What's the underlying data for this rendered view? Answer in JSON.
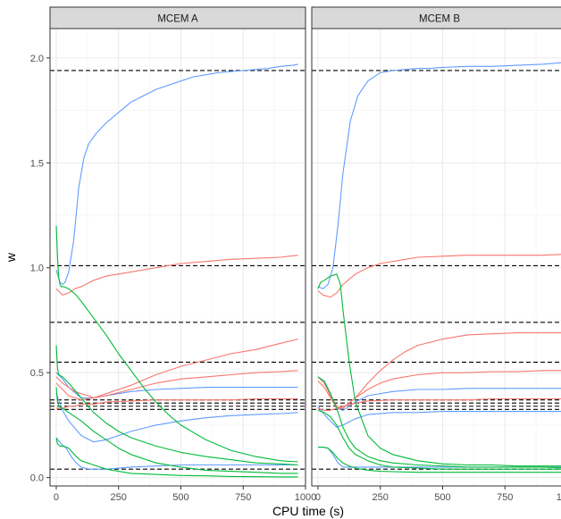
{
  "chart_data": {
    "type": "line",
    "xlabel": "CPU time (s)",
    "ylabel": "w",
    "xlim": [
      -25,
      1000
    ],
    "ylim": [
      -0.04,
      2.14
    ],
    "x_ticks": [
      0,
      250,
      500,
      750,
      1000
    ],
    "x_tick_labels": [
      "0",
      "250",
      "500",
      "750",
      "1000"
    ],
    "y_ticks": [
      0.0,
      0.5,
      1.0,
      1.5,
      2.0
    ],
    "y_tick_labels": [
      "0.0",
      "0.5",
      "1.0",
      "1.5",
      "2.0"
    ],
    "grid": true,
    "colors": {
      "blue": "#619CFF",
      "red": "#F8766D",
      "green": "#00BA38",
      "reference": "#000000"
    },
    "reference_lines": [
      1.94,
      1.01,
      0.74,
      0.55,
      0.37,
      0.355,
      0.34,
      0.325,
      0.04
    ],
    "panels": [
      {
        "strip": "MCEM A",
        "series": [
          {
            "color": "blue",
            "x": [
              0,
              15,
              25,
              35,
              50,
              70,
              90,
              110,
              130,
              160,
              200,
              250,
              300,
              350,
              400,
              450,
              500,
              550,
              600,
              650,
              700,
              750,
              800,
              850,
              900,
              950,
              970
            ],
            "y": [
              0.99,
              0.93,
              0.92,
              0.93,
              0.98,
              1.13,
              1.38,
              1.52,
              1.59,
              1.64,
              1.69,
              1.74,
              1.79,
              1.82,
              1.85,
              1.87,
              1.89,
              1.91,
              1.92,
              1.93,
              1.935,
              1.94,
              1.945,
              1.95,
              1.96,
              1.965,
              1.97
            ]
          },
          {
            "color": "blue",
            "x": [
              0,
              25,
              50,
              100,
              150,
              200,
              300,
              400,
              500,
              600,
              700,
              800,
              900,
              970
            ],
            "y": [
              0.5,
              0.47,
              0.43,
              0.38,
              0.38,
              0.39,
              0.41,
              0.42,
              0.425,
              0.43,
              0.43,
              0.43,
              0.43,
              0.43
            ]
          },
          {
            "color": "blue",
            "x": [
              0,
              25,
              50,
              100,
              150,
              200,
              250,
              300,
              400,
              500,
              600,
              700,
              800,
              900,
              970
            ],
            "y": [
              0.4,
              0.32,
              0.27,
              0.2,
              0.17,
              0.18,
              0.2,
              0.22,
              0.25,
              0.27,
              0.285,
              0.295,
              0.3,
              0.305,
              0.31
            ]
          },
          {
            "color": "blue",
            "x": [
              0,
              20,
              40,
              60,
              80,
              100,
              130,
              200,
              300,
              400,
              500,
              600,
              700,
              800,
              970
            ],
            "y": [
              0.19,
              0.16,
              0.14,
              0.1,
              0.07,
              0.05,
              0.04,
              0.04,
              0.05,
              0.055,
              0.06,
              0.06,
              0.06,
              0.06,
              0.06
            ]
          },
          {
            "color": "red",
            "x": [
              0,
              25,
              50,
              75,
              100,
              150,
              200,
              250,
              300,
              400,
              500,
              600,
              700,
              800,
              900,
              970
            ],
            "y": [
              0.9,
              0.87,
              0.88,
              0.9,
              0.91,
              0.94,
              0.96,
              0.97,
              0.98,
              1.0,
              1.02,
              1.03,
              1.04,
              1.045,
              1.05,
              1.06
            ]
          },
          {
            "color": "red",
            "x": [
              0,
              25,
              50,
              75,
              100,
              130,
              150,
              200,
              300,
              400,
              500,
              600,
              700,
              800,
              900,
              970
            ],
            "y": [
              0.48,
              0.45,
              0.43,
              0.41,
              0.4,
              0.39,
              0.38,
              0.4,
              0.44,
              0.49,
              0.53,
              0.56,
              0.59,
              0.61,
              0.64,
              0.66
            ]
          },
          {
            "color": "red",
            "x": [
              0,
              25,
              50,
              100,
              150,
              200,
              300,
              400,
              500,
              600,
              700,
              800,
              900,
              970
            ],
            "y": [
              0.45,
              0.42,
              0.39,
              0.37,
              0.38,
              0.39,
              0.42,
              0.45,
              0.47,
              0.48,
              0.49,
              0.5,
              0.505,
              0.51
            ]
          },
          {
            "color": "red",
            "x": [
              0,
              25,
              50,
              75,
              100,
              150,
              200,
              300,
              400,
              500,
              600,
              700,
              800,
              900,
              970
            ],
            "y": [
              0.33,
              0.33,
              0.34,
              0.34,
              0.35,
              0.35,
              0.36,
              0.365,
              0.37,
              0.37,
              0.37,
              0.37,
              0.375,
              0.375,
              0.375
            ]
          },
          {
            "color": "green",
            "x": [
              0,
              5,
              10,
              15,
              20,
              30,
              50,
              80,
              100,
              150,
              200,
              250,
              300,
              350,
              400,
              450,
              500,
              600,
              700,
              800,
              900,
              970
            ],
            "y": [
              1.2,
              1.05,
              0.95,
              0.92,
              0.91,
              0.91,
              0.9,
              0.87,
              0.84,
              0.76,
              0.68,
              0.59,
              0.51,
              0.43,
              0.36,
              0.3,
              0.25,
              0.18,
              0.13,
              0.1,
              0.08,
              0.075
            ]
          },
          {
            "color": "green",
            "x": [
              0,
              5,
              10,
              25,
              50,
              100,
              150,
              200,
              250,
              300,
              400,
              500,
              600,
              700,
              800,
              900,
              970
            ],
            "y": [
              0.63,
              0.52,
              0.49,
              0.48,
              0.45,
              0.38,
              0.31,
              0.26,
              0.22,
              0.19,
              0.15,
              0.12,
              0.1,
              0.085,
              0.07,
              0.065,
              0.06
            ]
          },
          {
            "color": "green",
            "x": [
              0,
              5,
              10,
              25,
              50,
              100,
              150,
              200,
              250,
              300,
              400,
              500,
              600,
              700,
              800,
              900,
              970
            ],
            "y": [
              0.43,
              0.36,
              0.34,
              0.33,
              0.31,
              0.27,
              0.22,
              0.18,
              0.14,
              0.11,
              0.07,
              0.05,
              0.035,
              0.03,
              0.025,
              0.02,
              0.02
            ]
          },
          {
            "color": "green",
            "x": [
              0,
              5,
              15,
              30,
              50,
              80,
              100,
              150,
              200,
              250,
              300,
              400,
              500,
              600,
              700,
              800,
              900,
              970
            ],
            "y": [
              0.19,
              0.16,
              0.15,
              0.15,
              0.14,
              0.1,
              0.08,
              0.06,
              0.04,
              0.03,
              0.02,
              0.015,
              0.01,
              0.008,
              0.005,
              0.004,
              0.003,
              0.003
            ]
          }
        ]
      },
      {
        "strip": "MCEM B",
        "series": [
          {
            "color": "blue",
            "x": [
              0,
              20,
              40,
              60,
              80,
              100,
              130,
              160,
              200,
              250,
              300,
              350,
              400,
              450,
              500,
              600,
              700,
              800,
              900,
              1000
            ],
            "y": [
              0.91,
              0.9,
              0.92,
              1.0,
              1.2,
              1.45,
              1.7,
              1.82,
              1.89,
              1.93,
              1.94,
              1.945,
              1.95,
              1.95,
              1.955,
              1.96,
              1.96,
              1.965,
              1.97,
              1.98
            ]
          },
          {
            "color": "blue",
            "x": [
              0,
              25,
              50,
              75,
              100,
              150,
              200,
              300,
              400,
              500,
              600,
              700,
              800,
              900,
              1000
            ],
            "y": [
              0.48,
              0.46,
              0.4,
              0.33,
              0.32,
              0.36,
              0.39,
              0.41,
              0.42,
              0.42,
              0.425,
              0.425,
              0.425,
              0.425,
              0.425
            ]
          },
          {
            "color": "blue",
            "x": [
              0,
              25,
              50,
              75,
              100,
              150,
              200,
              300,
              400,
              500,
              600,
              700,
              800,
              900,
              1000
            ],
            "y": [
              0.34,
              0.3,
              0.27,
              0.24,
              0.25,
              0.28,
              0.3,
              0.31,
              0.31,
              0.315,
              0.315,
              0.315,
              0.315,
              0.315,
              0.315
            ]
          },
          {
            "color": "blue",
            "x": [
              0,
              20,
              40,
              60,
              80,
              100,
              150,
              200,
              300,
              400,
              500,
              600,
              700,
              800,
              900,
              1000
            ],
            "y": [
              0.145,
              0.145,
              0.14,
              0.11,
              0.07,
              0.05,
              0.05,
              0.05,
              0.05,
              0.05,
              0.05,
              0.05,
              0.05,
              0.05,
              0.05,
              0.05
            ]
          },
          {
            "color": "red",
            "x": [
              0,
              20,
              50,
              75,
              100,
              150,
              200,
              250,
              300,
              400,
              500,
              600,
              700,
              800,
              900,
              1000
            ],
            "y": [
              0.89,
              0.87,
              0.86,
              0.88,
              0.92,
              0.97,
              1.0,
              1.02,
              1.03,
              1.05,
              1.055,
              1.06,
              1.06,
              1.06,
              1.06,
              1.065
            ]
          },
          {
            "color": "red",
            "x": [
              0,
              25,
              50,
              75,
              100,
              150,
              200,
              250,
              300,
              350,
              400,
              500,
              600,
              700,
              800,
              900,
              1000
            ],
            "y": [
              0.48,
              0.45,
              0.39,
              0.34,
              0.33,
              0.38,
              0.45,
              0.51,
              0.56,
              0.6,
              0.63,
              0.66,
              0.68,
              0.685,
              0.69,
              0.69,
              0.69
            ]
          },
          {
            "color": "red",
            "x": [
              0,
              25,
              50,
              75,
              100,
              150,
              200,
              250,
              300,
              400,
              500,
              600,
              700,
              800,
              900,
              1000
            ],
            "y": [
              0.46,
              0.43,
              0.38,
              0.33,
              0.33,
              0.38,
              0.42,
              0.45,
              0.47,
              0.49,
              0.5,
              0.5,
              0.505,
              0.505,
              0.51,
              0.51
            ]
          },
          {
            "color": "red",
            "x": [
              0,
              25,
              50,
              75,
              100,
              150,
              200,
              300,
              400,
              500,
              600,
              700,
              800,
              900,
              1000
            ],
            "y": [
              0.33,
              0.32,
              0.32,
              0.33,
              0.34,
              0.355,
              0.365,
              0.37,
              0.37,
              0.37,
              0.37,
              0.375,
              0.375,
              0.375,
              0.375
            ]
          },
          {
            "color": "green",
            "x": [
              0,
              10,
              25,
              50,
              75,
              90,
              100,
              125,
              150,
              200,
              250,
              300,
              400,
              500,
              600,
              700,
              800,
              900,
              1000
            ],
            "y": [
              0.9,
              0.93,
              0.94,
              0.96,
              0.97,
              0.92,
              0.8,
              0.55,
              0.36,
              0.2,
              0.14,
              0.11,
              0.08,
              0.065,
              0.06,
              0.06,
              0.055,
              0.055,
              0.055
            ]
          },
          {
            "color": "green",
            "x": [
              0,
              10,
              25,
              50,
              75,
              100,
              125,
              150,
              200,
              250,
              300,
              400,
              500,
              600,
              700,
              800,
              900,
              1000
            ],
            "y": [
              0.48,
              0.47,
              0.46,
              0.4,
              0.33,
              0.24,
              0.18,
              0.14,
              0.1,
              0.08,
              0.07,
              0.06,
              0.055,
              0.05,
              0.05,
              0.05,
              0.05,
              0.045
            ]
          },
          {
            "color": "green",
            "x": [
              0,
              25,
              50,
              75,
              100,
              125,
              150,
              200,
              250,
              300,
              400,
              500,
              600,
              700,
              800,
              900,
              1000
            ],
            "y": [
              0.32,
              0.31,
              0.29,
              0.25,
              0.19,
              0.14,
              0.11,
              0.08,
              0.06,
              0.05,
              0.045,
              0.04,
              0.04,
              0.04,
              0.04,
              0.04,
              0.04
            ]
          },
          {
            "color": "green",
            "x": [
              0,
              20,
              40,
              60,
              80,
              100,
              125,
              150,
              200,
              250,
              300,
              400,
              500,
              600,
              700,
              800,
              900,
              1000
            ],
            "y": [
              0.145,
              0.145,
              0.14,
              0.12,
              0.09,
              0.07,
              0.055,
              0.045,
              0.035,
              0.03,
              0.028,
              0.025,
              0.025,
              0.025,
              0.025,
              0.025,
              0.025,
              0.025
            ]
          }
        ]
      }
    ]
  }
}
